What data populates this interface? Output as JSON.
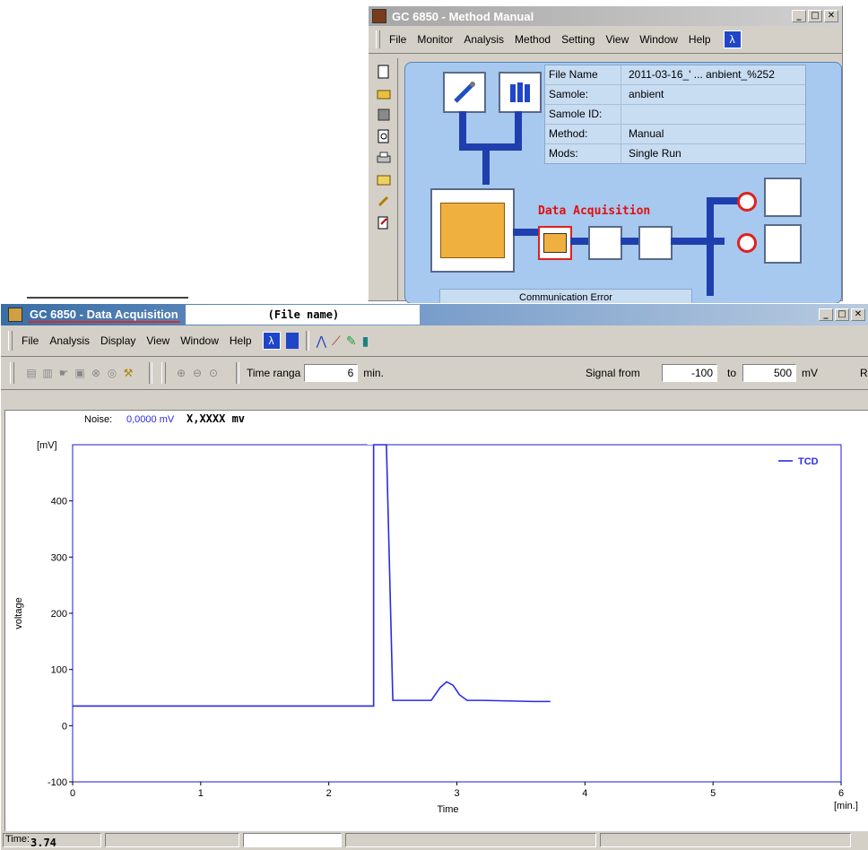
{
  "method_window": {
    "title": "GC 6850 - Method Manual",
    "menu": [
      "File",
      "Monitor",
      "Analysis",
      "Method",
      "Setting",
      "View",
      "Window",
      "Help"
    ],
    "info": [
      {
        "key": "File Name",
        "value": "2011-03-16_' ... anbient_%252"
      },
      {
        "key": "Samole:",
        "value": "anbient"
      },
      {
        "key": "Samole ID:",
        "value": ""
      },
      {
        "key": "Method:",
        "value": "Manual"
      },
      {
        "key": "Mods:",
        "value": "Single Run"
      }
    ],
    "data_acq_label": "Data Acquisition",
    "comm_error": "Communication Error"
  },
  "acq_window": {
    "title": "GC 6850 - Data Acquisition",
    "file_name_label": "(File name)",
    "menu": [
      "File",
      "Analysis",
      "Display",
      "View",
      "Window",
      "Help"
    ],
    "time_range_label": "Time ranga",
    "time_range_value": "6",
    "time_range_unit": "min.",
    "signal_from_label": "Signal from",
    "signal_from_value": "-100",
    "signal_to_label": "to",
    "signal_to_value": "500",
    "signal_unit": "mV",
    "trailing_char": "R",
    "noise_label": "Noise:",
    "noise_value": "0,0000 mV",
    "noise_placeholder": "X,XXXX mv"
  },
  "status": {
    "time_label": "Time:",
    "time_value": "3.74"
  },
  "chart_data": {
    "type": "line",
    "xlabel": "Time",
    "ylabel": "voltage",
    "x_unit": "[min.]",
    "y_unit": "[mV]",
    "xlim": [
      0,
      6
    ],
    "ylim": [
      -100,
      500
    ],
    "x_ticks": [
      "0",
      "1",
      "2",
      "3",
      "4",
      "5",
      "6"
    ],
    "y_ticks": [
      "-100",
      "0",
      "100",
      "200",
      "300",
      "400"
    ],
    "grid": false,
    "legend_position": "top-right",
    "series": [
      {
        "name": "TCD",
        "color": "#2a2ae6",
        "x": [
          0,
          2.35,
          2.35,
          2.36,
          2.45,
          2.5,
          2.55,
          2.7,
          2.8,
          2.87,
          2.92,
          2.97,
          3.02,
          3.08,
          3.2,
          3.4,
          3.6,
          3.73
        ],
        "y": [
          35,
          35,
          500,
          500,
          500,
          45,
          45,
          45,
          45,
          68,
          78,
          72,
          55,
          45,
          45,
          44,
          43,
          43
        ]
      }
    ]
  }
}
